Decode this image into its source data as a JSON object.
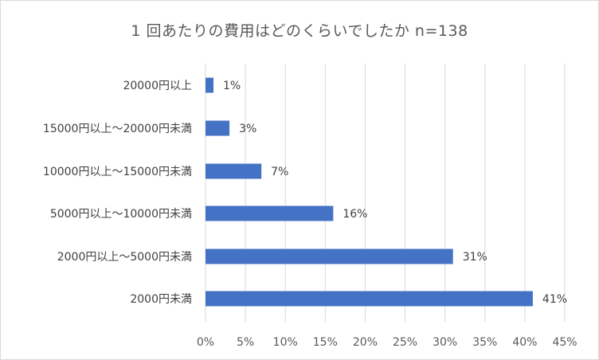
{
  "chart_data": {
    "type": "bar",
    "orientation": "horizontal",
    "title": "1 回あたりの費用はどのくらいでしたか n=138",
    "categories": [
      "20000円以上",
      "15000円以上～20000円未満",
      "10000円以上～15000円未満",
      "5000円以上～10000円未満",
      "2000円以上～5000円未満",
      "2000円未満"
    ],
    "values": [
      1,
      3,
      7,
      16,
      31,
      41
    ],
    "data_labels": [
      "1%",
      "3%",
      "7%",
      "16%",
      "31%",
      "41%"
    ],
    "x_ticks": [
      "0%",
      "5%",
      "10%",
      "15%",
      "20%",
      "25%",
      "30%",
      "35%",
      "40%",
      "45%"
    ],
    "xlim": [
      0,
      45
    ],
    "xlabel": "",
    "ylabel": "",
    "grid": "vertical",
    "legend": "none",
    "bar_color": "#4472c4"
  }
}
